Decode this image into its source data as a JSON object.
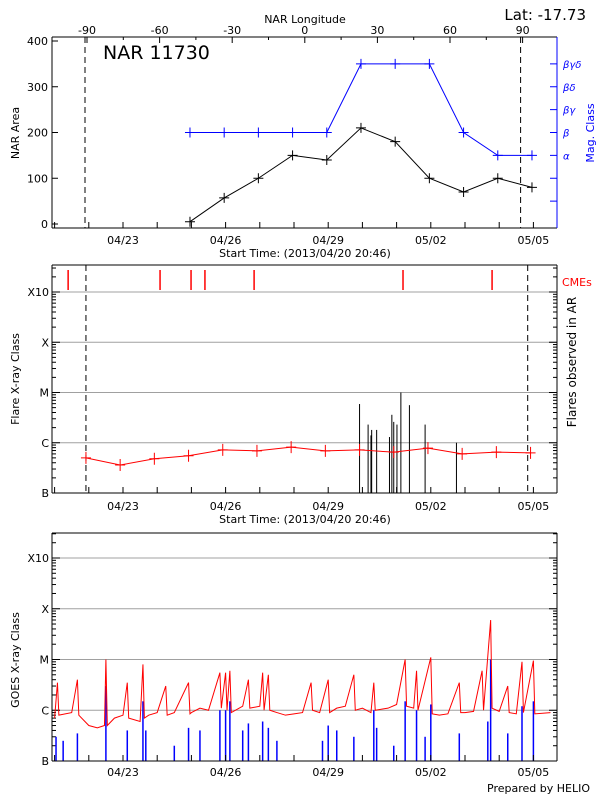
{
  "header": {
    "lat_label": "Lat: -17.73",
    "region_label": "NAR 11730",
    "top_axis_label": "NAR Longitude",
    "credit": "Prepared by HELIO"
  },
  "colors": {
    "area": "#000000",
    "mag_class": "#0000ff",
    "flare_avg": "#ff0000",
    "cme": "#ff0000",
    "goes_long": "#ff0000",
    "goes_short": "#0000ff",
    "grid": "#a0a0a0"
  },
  "chart_data": [
    {
      "type": "line",
      "panel": "nar",
      "xlabel": "Start Time: (2013/04/20 20:46)",
      "ylabel": "NAR Area",
      "y2label": "Mag. Class",
      "top_axis_label": "NAR Longitude",
      "x_tick_labels": [
        "04/23",
        "04/26",
        "04/29",
        "05/02",
        "05/05"
      ],
      "x_tick_dates": [
        "2013-04-23T00:00",
        "2013-04-26T00:00",
        "2013-04-29T00:00",
        "2013-05-02T00:00",
        "2013-05-05T00:00"
      ],
      "ylim": [
        0,
        400
      ],
      "y_ticks": [
        0,
        100,
        200,
        300,
        400
      ],
      "longitude_ticks": [
        -90,
        -60,
        -30,
        0,
        30,
        60,
        90
      ],
      "limb_longitudes": [
        -90,
        90
      ],
      "mag_class_levels": [
        {
          "name": "α",
          "level": 150
        },
        {
          "name": "β",
          "level": 200
        },
        {
          "name": "βγ",
          "level": 250
        },
        {
          "name": "βδ",
          "level": 300
        },
        {
          "name": "βγδ",
          "level": 350
        }
      ],
      "dates": [
        "2013-04-24T23:00",
        "2013-04-25T23:00",
        "2013-04-26T23:00",
        "2013-04-27T23:00",
        "2013-04-28T23:00",
        "2013-04-29T23:00",
        "2013-04-30T23:00",
        "2013-05-01T23:00",
        "2013-05-02T23:00",
        "2013-05-03T23:00",
        "2013-05-04T23:00"
      ],
      "series": [
        {
          "name": "NAR Area",
          "values": [
            5,
            57,
            100,
            150,
            140,
            210,
            180,
            100,
            70,
            100,
            80
          ]
        },
        {
          "name": "Mag. Class",
          "values": [
            "β",
            "β",
            "β",
            "β",
            "β",
            "βγδ",
            "βγδ",
            "βγδ",
            "β",
            "α",
            "α"
          ]
        }
      ]
    },
    {
      "type": "line",
      "panel": "flares",
      "xlabel": "Start Time: (2013/04/20 20:46)",
      "ylabel": "Flare X-ray Class",
      "y2label": "Flares observed in AR",
      "cme_label": "CMEs",
      "y_scale": "log",
      "y_tick_labels": [
        "B",
        "C",
        "M",
        "X",
        "X10"
      ],
      "x_tick_labels": [
        "04/23",
        "04/26",
        "04/29",
        "05/02",
        "05/05"
      ],
      "limb_dates": [
        "2013-04-21T22:00",
        "2013-05-04T20:00"
      ],
      "cme_times": [
        "2013-04-21T09:30",
        "2013-04-24T02:00",
        "2013-04-24T23:45",
        "2013-04-25T09:30",
        "2013-04-26T20:00",
        "2013-05-01T04:30",
        "2013-05-03T19:00"
      ],
      "daily_flare_level": {
        "dates": [
          "2013-04-21T22:00",
          "2013-04-22T22:00",
          "2013-04-23T22:00",
          "2013-04-24T22:00",
          "2013-04-25T22:00",
          "2013-04-26T22:00",
          "2013-04-27T22:00",
          "2013-04-28T22:00",
          "2013-04-29T22:00",
          "2013-04-30T22:00",
          "2013-05-01T22:00",
          "2013-05-02T22:00",
          "2013-05-03T22:00",
          "2013-05-04T22:00"
        ],
        "values": [
          "B5.0",
          "B3.6",
          "B4.8",
          "B5.5",
          "B7.2",
          "B6.9",
          "B8.2",
          "B6.9",
          "B7.2",
          "B6.5",
          "B7.8",
          "B6.0",
          "B6.5",
          "B6.3"
        ]
      },
      "flares": [
        {
          "time": "2013-04-29T22:00",
          "class": "C5.9"
        },
        {
          "time": "2013-04-30T04:00",
          "class": "C2.3"
        },
        {
          "time": "2013-04-30T06:00",
          "class": "C1.4"
        },
        {
          "time": "2013-04-30T06:30",
          "class": "C1.8"
        },
        {
          "time": "2013-04-30T10:00",
          "class": "C1.8"
        },
        {
          "time": "2013-04-30T19:00",
          "class": "C1.3"
        },
        {
          "time": "2013-04-30T20:40",
          "class": "C3.6"
        },
        {
          "time": "2013-04-30T22:00",
          "class": "C2.6"
        },
        {
          "time": "2013-05-01T00:15",
          "class": "C2.3"
        },
        {
          "time": "2013-05-01T03:00",
          "class": "M1.0"
        },
        {
          "time": "2013-05-01T09:00",
          "class": "C5.6"
        },
        {
          "time": "2013-05-01T20:00",
          "class": "C2.3"
        },
        {
          "time": "2013-05-02T18:00",
          "class": "C1.0"
        }
      ]
    },
    {
      "type": "line",
      "panel": "goes",
      "ylabel": "GOES X-ray Class",
      "y_scale": "log",
      "y_tick_labels": [
        "B",
        "C",
        "M",
        "X",
        "X10"
      ],
      "x_tick_labels": [
        "04/23",
        "04/26",
        "04/29",
        "05/02",
        "05/05"
      ],
      "series": [
        {
          "name": "long",
          "points": [
            [
              "2013-04-20T21:00",
              "B5.0"
            ],
            [
              "2013-04-21T00:00",
              "B7.0"
            ],
            [
              "2013-04-21T02:00",
              "C3.5"
            ],
            [
              "2013-04-21T03:00",
              "B8.0"
            ],
            [
              "2013-04-21T12:00",
              "B9.0"
            ],
            [
              "2013-04-21T16:00",
              "C4.0"
            ],
            [
              "2013-04-21T17:00",
              "B8.0"
            ],
            [
              "2013-04-22T00:00",
              "B5.0"
            ],
            [
              "2013-04-22T06:00",
              "B4.5"
            ],
            [
              "2013-04-22T11:00",
              "B5.0"
            ],
            [
              "2013-04-22T12:00",
              "M1.0"
            ],
            [
              "2013-04-22T13:00",
              "B5.0"
            ],
            [
              "2013-04-22T18:00",
              "B7.0"
            ],
            [
              "2013-04-23T00:00",
              "B8.0"
            ],
            [
              "2013-04-23T03:00",
              "C3.5"
            ],
            [
              "2013-04-23T04:00",
              "B7.0"
            ],
            [
              "2013-04-23T12:00",
              "B6.0"
            ],
            [
              "2013-04-23T14:00",
              "C8.0"
            ],
            [
              "2013-04-23T15:00",
              "B7.0"
            ],
            [
              "2013-04-23T18:00",
              "B8.0"
            ],
            [
              "2013-04-24T00:00",
              "B9.0"
            ],
            [
              "2013-04-24T06:00",
              "C3.0"
            ],
            [
              "2013-04-24T07:00",
              "B8.0"
            ],
            [
              "2013-04-24T12:00",
              "B9.0"
            ],
            [
              "2013-04-24T22:00",
              "C3.5"
            ],
            [
              "2013-04-24T23:00",
              "B8.5"
            ],
            [
              "2013-04-25T00:00",
              "B9.0"
            ],
            [
              "2013-04-25T06:00",
              "C1.1"
            ],
            [
              "2013-04-25T12:00",
              "C1.0"
            ],
            [
              "2013-04-25T20:00",
              "C5.5"
            ],
            [
              "2013-04-25T21:00",
              "C1.1"
            ],
            [
              "2013-04-26T00:00",
              "C5.5"
            ],
            [
              "2013-04-26T01:00",
              "C1.0"
            ],
            [
              "2013-04-26T03:00",
              "C6.0"
            ],
            [
              "2013-04-26T04:00",
              "B9.0"
            ],
            [
              "2013-04-26T12:00",
              "C1.2"
            ],
            [
              "2013-04-26T16:00",
              "C4.0"
            ],
            [
              "2013-04-26T17:00",
              "C1.1"
            ],
            [
              "2013-04-27T00:00",
              "C1.2"
            ],
            [
              "2013-04-27T02:00",
              "C5.5"
            ],
            [
              "2013-04-27T03:00",
              "C1.0"
            ],
            [
              "2013-04-27T06:00",
              "C5.0"
            ],
            [
              "2013-04-27T07:00",
              "C1.0"
            ],
            [
              "2013-04-27T12:00",
              "B9.0"
            ],
            [
              "2013-04-27T18:00",
              "B8.0"
            ],
            [
              "2013-04-28T00:00",
              "B8.5"
            ],
            [
              "2013-04-28T06:00",
              "B9.0"
            ],
            [
              "2013-04-28T12:00",
              "C3.5"
            ],
            [
              "2013-04-28T13:00",
              "C1.0"
            ],
            [
              "2013-04-28T18:00",
              "B9.0"
            ],
            [
              "2013-04-29T00:00",
              "C4.0"
            ],
            [
              "2013-04-29T01:00",
              "B9.0"
            ],
            [
              "2013-04-29T06:00",
              "C1.1"
            ],
            [
              "2013-04-29T12:00",
              "C1.2"
            ],
            [
              "2013-04-29T18:00",
              "C5.0"
            ],
            [
              "2013-04-29T19:00",
              "C1.0"
            ],
            [
              "2013-04-30T00:00",
              "C1.1"
            ],
            [
              "2013-04-30T06:00",
              "B9.0"
            ],
            [
              "2013-04-30T08:00",
              "C3.5"
            ],
            [
              "2013-04-30T09:00",
              "C1.0"
            ],
            [
              "2013-04-30T18:00",
              "C1.1"
            ],
            [
              "2013-05-01T00:00",
              "C1.3"
            ],
            [
              "2013-05-01T06:00",
              "M1.0"
            ],
            [
              "2013-05-01T07:00",
              "C1.2"
            ],
            [
              "2013-05-01T12:00",
              "C1.1"
            ],
            [
              "2013-05-01T14:00",
              "C6.0"
            ],
            [
              "2013-05-01T15:00",
              "C1.0"
            ],
            [
              "2013-05-02T00:00",
              "M1.1"
            ],
            [
              "2013-05-02T01:00",
              "B8.5"
            ],
            [
              "2013-05-02T06:00",
              "B8.0"
            ],
            [
              "2013-05-02T12:00",
              "B8.5"
            ],
            [
              "2013-05-02T20:00",
              "C3.5"
            ],
            [
              "2013-05-02T21:00",
              "B9.0"
            ],
            [
              "2013-05-03T00:00",
              "B9.0"
            ],
            [
              "2013-05-03T06:00",
              "B9.5"
            ],
            [
              "2013-05-03T12:00",
              "C6.0"
            ],
            [
              "2013-05-03T13:00",
              "C1.0"
            ],
            [
              "2013-05-03T18:00",
              "M6.0"
            ],
            [
              "2013-05-03T19:00",
              "C1.1"
            ],
            [
              "2013-05-04T00:00",
              "B9.5"
            ],
            [
              "2013-05-04T06:00",
              "C3.0"
            ],
            [
              "2013-05-04T07:00",
              "B9.0"
            ],
            [
              "2013-05-04T12:00",
              "B8.5"
            ],
            [
              "2013-05-04T16:00",
              "C9.0"
            ],
            [
              "2013-05-04T17:00",
              "B9.0"
            ],
            [
              "2013-05-05T00:00",
              "C9.5"
            ],
            [
              "2013-05-05T01:00",
              "B8.5"
            ],
            [
              "2013-05-05T12:00",
              "B9.0"
            ],
            [
              "2013-05-05T18:00",
              "C1.2"
            ],
            [
              "2013-05-05T19:00",
              "M1.3"
            ]
          ]
        },
        {
          "name": "short",
          "spikes": [
            [
              "2013-04-21T01:00",
              "B3.0"
            ],
            [
              "2013-04-21T06:00",
              "B2.5"
            ],
            [
              "2013-04-21T16:00",
              "B3.5"
            ],
            [
              "2013-04-22T12:00",
              "C3.0"
            ],
            [
              "2013-04-23T03:00",
              "B4.0"
            ],
            [
              "2013-04-23T14:00",
              "C1.5"
            ],
            [
              "2013-04-23T16:00",
              "B4.0"
            ],
            [
              "2013-04-24T12:00",
              "B2.0"
            ],
            [
              "2013-04-24T22:00",
              "B4.5"
            ],
            [
              "2013-04-25T06:00",
              "B4.0"
            ],
            [
              "2013-04-25T20:00",
              "C1.0"
            ],
            [
              "2013-04-26T00:00",
              "C1.0"
            ],
            [
              "2013-04-26T03:00",
              "C1.5"
            ],
            [
              "2013-04-26T12:00",
              "B4.0"
            ],
            [
              "2013-04-26T16:00",
              "B5.5"
            ],
            [
              "2013-04-27T02:00",
              "B6.0"
            ],
            [
              "2013-04-27T06:00",
              "B4.5"
            ],
            [
              "2013-04-27T12:00",
              "B2.5"
            ],
            [
              "2013-04-28T20:00",
              "B2.5"
            ],
            [
              "2013-04-29T00:00",
              "B5.0"
            ],
            [
              "2013-04-29T06:00",
              "B4.0"
            ],
            [
              "2013-04-29T18:00",
              "B3.0"
            ],
            [
              "2013-04-30T08:00",
              "C1.0"
            ],
            [
              "2013-04-30T10:00",
              "B4.5"
            ],
            [
              "2013-04-30T22:00",
              "B2.0"
            ],
            [
              "2013-05-01T06:00",
              "C1.5"
            ],
            [
              "2013-05-01T14:00",
              "C1.0"
            ],
            [
              "2013-05-01T20:00",
              "B3.0"
            ],
            [
              "2013-05-02T00:00",
              "C1.3"
            ],
            [
              "2013-05-02T20:00",
              "B3.5"
            ],
            [
              "2013-05-03T16:00",
              "B6.0"
            ],
            [
              "2013-05-03T18:00",
              "M1.0"
            ],
            [
              "2013-05-04T06:00",
              "B3.5"
            ],
            [
              "2013-05-04T16:00",
              "C1.2"
            ],
            [
              "2013-05-05T00:00",
              "C1.5"
            ],
            [
              "2013-05-05T18:00",
              "C2.0"
            ]
          ]
        }
      ]
    }
  ]
}
